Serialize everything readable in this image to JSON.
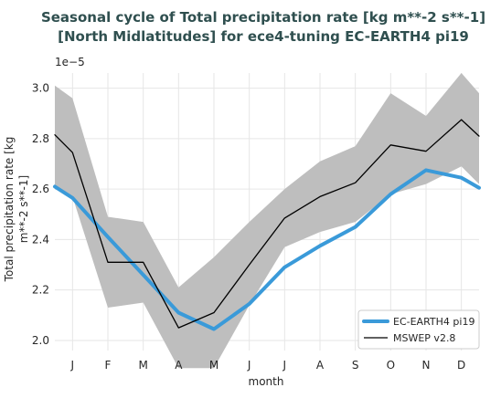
{
  "chart_data": {
    "type": "line",
    "title_line1": "Seasonal cycle of Total precipitation rate [kg m**-2 s**-1]",
    "title_line2": "[North Midlatitudes] for ece4-tuning EC-EARTH4 pi19",
    "xlabel": "month",
    "ylabel_line1": "Total precipitation rate [kg",
    "ylabel_line2": "m**-2 s**-1]",
    "y_multiplier": "1e−5",
    "categories": [
      "J",
      "F",
      "M",
      "A",
      "M",
      "J",
      "J",
      "A",
      "S",
      "O",
      "N",
      "D"
    ],
    "xlim": [
      0.5,
      12.5
    ],
    "ylim": [
      1.96,
      3.06
    ],
    "yticks": [
      "2.0",
      "2.2",
      "2.4",
      "2.6",
      "2.8",
      "3.0"
    ],
    "grid": true,
    "legend_position": "bottom-right",
    "series": [
      {
        "name": "EC-EARTH4 pi19",
        "color": "#3a9ad9",
        "x": [
          0.5,
          1,
          2,
          3,
          4,
          5,
          6,
          7,
          8,
          9,
          10,
          11,
          12,
          12.5
        ],
        "values": [
          2.61,
          2.565,
          2.41,
          2.26,
          2.11,
          2.045,
          2.145,
          2.29,
          2.375,
          2.45,
          2.58,
          2.675,
          2.645,
          2.605
        ]
      },
      {
        "name": "MSWEP v2.8",
        "color": "#000000",
        "x": [
          0.5,
          1,
          2,
          3,
          4,
          5,
          6,
          7,
          8,
          9,
          10,
          11,
          12,
          12.5
        ],
        "values": [
          2.815,
          2.745,
          2.31,
          2.31,
          2.05,
          2.11,
          2.3,
          2.485,
          2.57,
          2.625,
          2.775,
          2.75,
          2.875,
          2.81
        ]
      }
    ],
    "band": {
      "color": "#bebebe",
      "x": [
        0.5,
        1,
        2,
        3,
        4,
        5,
        6,
        7,
        8,
        9,
        10,
        11,
        12,
        12.5
      ],
      "lower": [
        2.6,
        2.57,
        2.13,
        2.15,
        1.89,
        1.89,
        2.14,
        2.37,
        2.43,
        2.47,
        2.58,
        2.62,
        2.69,
        2.62
      ],
      "upper": [
        3.01,
        2.96,
        2.49,
        2.47,
        2.21,
        2.33,
        2.47,
        2.6,
        2.71,
        2.77,
        2.98,
        2.89,
        3.06,
        2.98
      ]
    }
  }
}
